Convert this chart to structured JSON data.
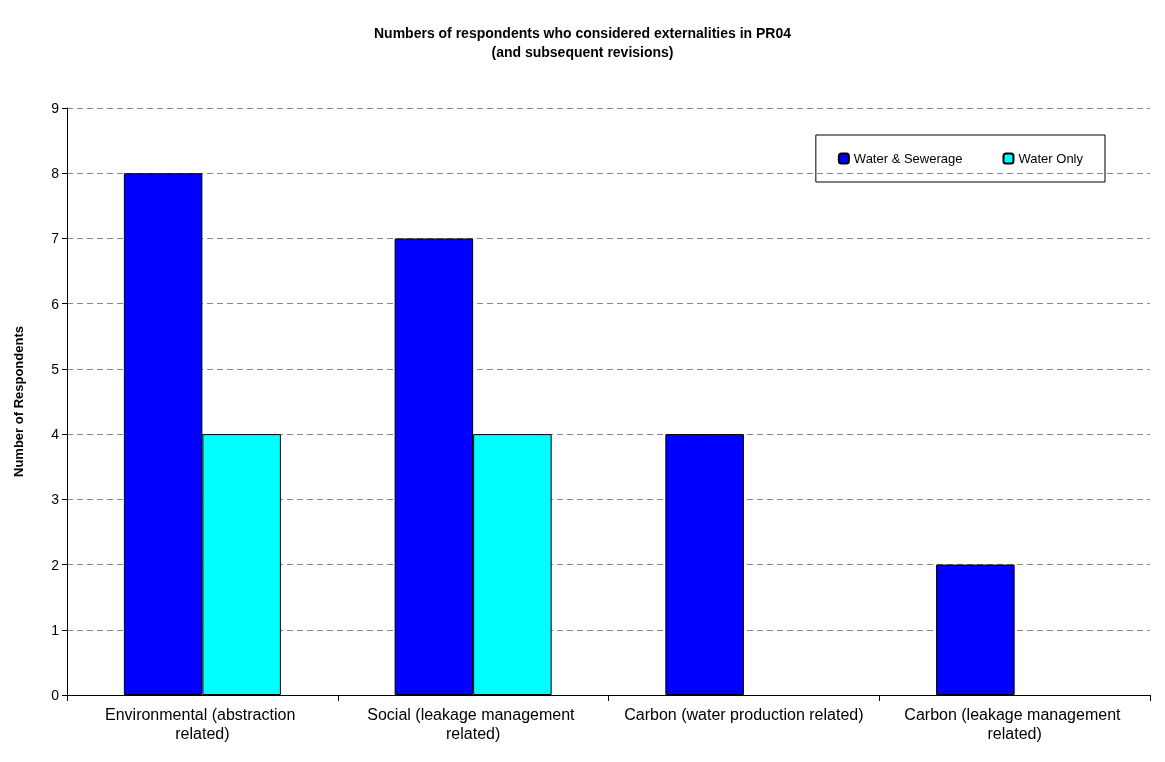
{
  "chart_data": {
    "type": "bar",
    "title": "Numbers of respondents who considered externalities in PR04\n(and subsequent revisions)",
    "ylabel": "Number of Respondents",
    "categories": [
      "Environmental (abstraction related)",
      "Social (leakage management related)",
      "Carbon (water production related)",
      "Carbon (leakage management related)"
    ],
    "series": [
      {
        "name": "Water & Sewerage",
        "color": "#0000ff",
        "values": [
          8,
          7,
          4,
          2
        ]
      },
      {
        "name": "Water Only",
        "color": "#00ffff",
        "values": [
          4,
          4,
          null,
          null
        ]
      }
    ],
    "ylim": [
      0,
      9
    ],
    "yticks": [
      0,
      1,
      2,
      3,
      4,
      5,
      6,
      7,
      8,
      9
    ],
    "grid": "y",
    "legend": "top right"
  }
}
